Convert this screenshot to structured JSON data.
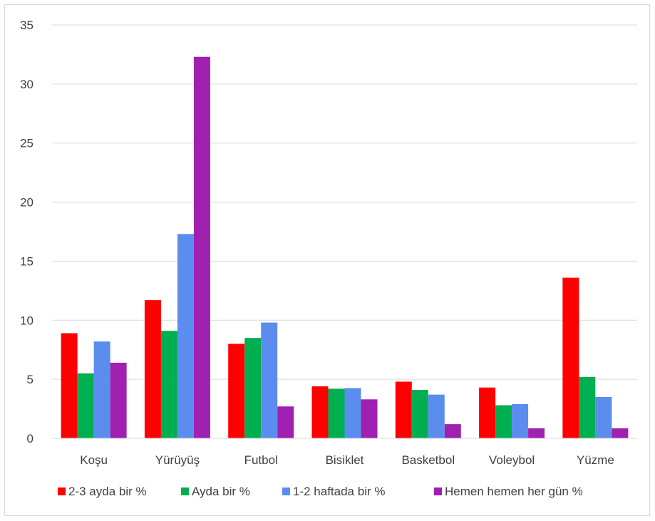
{
  "chart_data": {
    "type": "bar",
    "categories": [
      "Koşu",
      "Yürüyüş",
      "Futbol",
      "Bisiklet",
      "Basketbol",
      "Voleybol",
      "Yüzme"
    ],
    "series": [
      {
        "name": "2-3 ayda bir %",
        "values": [
          8.9,
          11.7,
          8.0,
          4.4,
          4.8,
          4.3,
          13.6
        ],
        "color": "#ff0000"
      },
      {
        "name": "Ayda bir %",
        "values": [
          5.5,
          9.1,
          8.5,
          4.2,
          4.1,
          2.8,
          5.2
        ],
        "color": "#00b050"
      },
      {
        "name": "1-2 haftada bir %",
        "values": [
          8.2,
          17.3,
          9.8,
          4.25,
          3.7,
          2.9,
          3.5
        ],
        "color": "#5b8def"
      },
      {
        "name": "Hemen hemen her gün %",
        "values": [
          6.4,
          32.3,
          2.7,
          3.3,
          1.2,
          0.85,
          0.85
        ],
        "color": "#a020b0"
      }
    ],
    "yticks": [
      "0",
      "5",
      "10",
      "15",
      "20",
      "25",
      "30",
      "35"
    ],
    "ylim": [
      0,
      35
    ],
    "grid": true,
    "legend_position": "bottom"
  }
}
